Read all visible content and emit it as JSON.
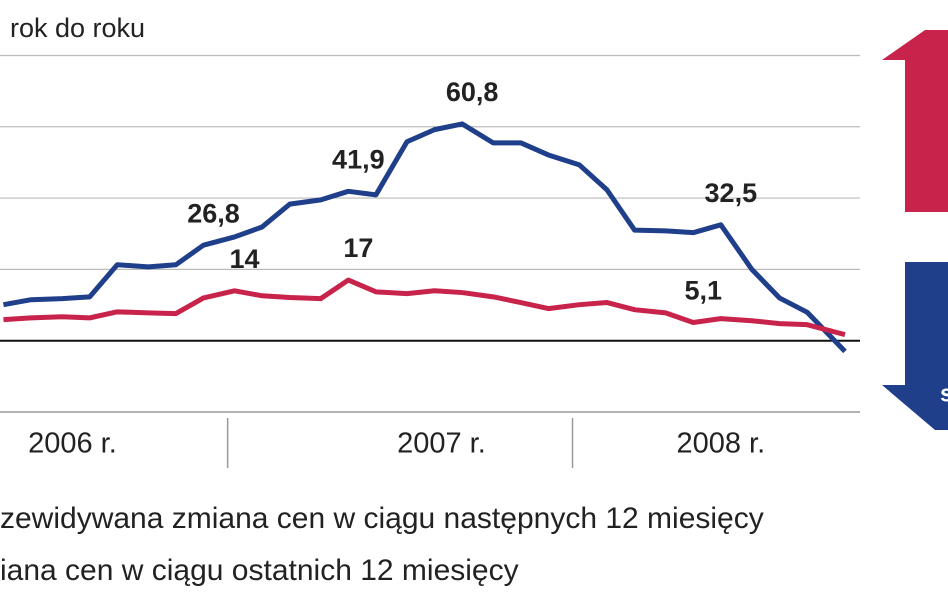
{
  "chart_data": {
    "type": "line",
    "subtitle": "rok do roku",
    "x": [
      2006.35,
      2006.43,
      2006.52,
      2006.6,
      2006.68,
      2006.77,
      2006.85,
      2006.93,
      2007.02,
      2007.1,
      2007.18,
      2007.27,
      2007.35,
      2007.43,
      2007.52,
      2007.6,
      2007.68,
      2007.77,
      2007.85,
      2007.93,
      2008.02,
      2008.1,
      2008.18,
      2008.27,
      2008.35,
      2008.43,
      2008.52,
      2008.6,
      2008.68,
      2008.79
    ],
    "xlim": [
      2006.34,
      2009.08
    ],
    "xticks": [
      {
        "value": 2007,
        "label": ""
      },
      {
        "value": 2008,
        "label": ""
      }
    ],
    "x_labels": [
      {
        "value": 2006.55,
        "label": "2006 r."
      },
      {
        "value": 2007.62,
        "label": "2007 r."
      },
      {
        "value": 2008.43,
        "label": "2008 r."
      }
    ],
    "ylim": [
      -20,
      95
    ],
    "yticks": [
      0,
      20,
      40,
      60,
      80
    ],
    "grid": true,
    "series": [
      {
        "name": "zewidywana zmiana cen w ciągu następnych 12 miesięcy",
        "color": "#1f3f8a",
        "values": [
          10.1,
          11.5,
          11.8,
          12.3,
          21.3,
          20.7,
          21.3,
          26.8,
          29.1,
          31.9,
          38.3,
          39.5,
          41.9,
          40.9,
          55.8,
          59.2,
          60.8,
          55.5,
          55.5,
          52.1,
          49.3,
          42.3,
          31.0,
          30.8,
          30.3,
          32.5,
          20.0,
          12.0,
          8.0,
          -3.0
        ],
        "value_labels": [
          null,
          null,
          null,
          null,
          null,
          null,
          null,
          "26,8",
          null,
          null,
          null,
          null,
          "41,9",
          null,
          null,
          null,
          "60,8",
          null,
          null,
          null,
          null,
          null,
          null,
          null,
          null,
          "32,5",
          null,
          null,
          null,
          null
        ]
      },
      {
        "name": "iana cen w ciągu ostatnich 12 miesięcy",
        "color": "#c8234a",
        "values": [
          5.9,
          6.4,
          6.7,
          6.4,
          8.1,
          7.8,
          7.6,
          12.0,
          14,
          12.6,
          12.1,
          11.8,
          17,
          13.7,
          13.2,
          14.0,
          13.5,
          12.3,
          10.7,
          9.0,
          10.1,
          10.7,
          8.7,
          7.8,
          5.1,
          6.2,
          5.6,
          4.8,
          4.5,
          1.7
        ],
        "value_labels": [
          null,
          null,
          null,
          null,
          null,
          null,
          null,
          null,
          "14",
          null,
          null,
          null,
          "17",
          null,
          null,
          null,
          null,
          null,
          null,
          null,
          null,
          null,
          null,
          null,
          "5,1",
          null,
          null,
          null,
          null,
          null
        ]
      }
    ],
    "annotations": [
      "s"
    ]
  }
}
